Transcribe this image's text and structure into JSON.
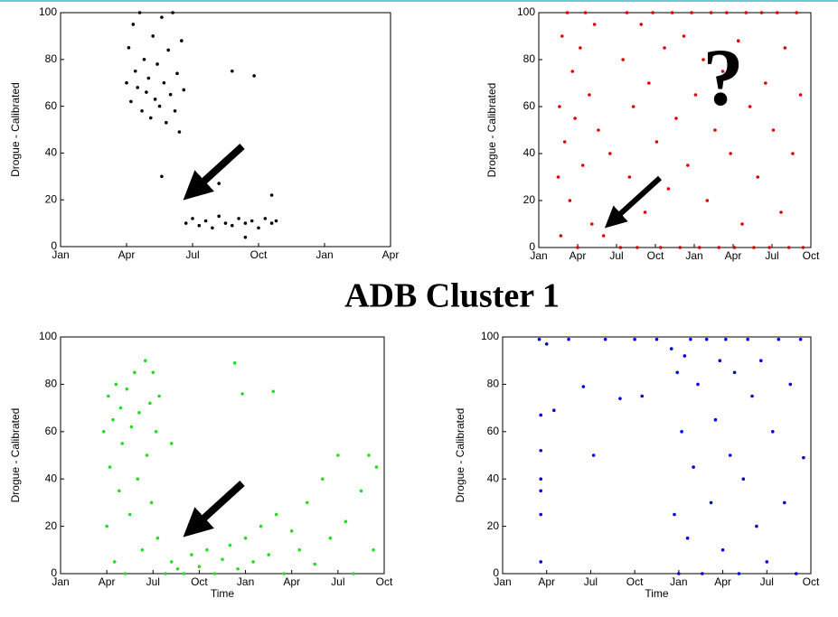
{
  "slide": {
    "title": "ADB Cluster 1"
  },
  "chart_data": [
    {
      "type": "scatter",
      "ylabel": "Drogue - Calibrated",
      "color": "#000000",
      "xlim": [
        0,
        15
      ],
      "ylim": [
        0,
        100
      ],
      "xticks": [
        {
          "value": 0,
          "label": "Jan"
        },
        {
          "value": 3,
          "label": "Apr"
        },
        {
          "value": 6,
          "label": "Jul"
        },
        {
          "value": 9,
          "label": "Oct"
        },
        {
          "value": 12,
          "label": "Jan"
        },
        {
          "value": 15,
          "label": "Apr"
        }
      ],
      "yticks": [
        0,
        20,
        40,
        60,
        80,
        100
      ],
      "x": [
        3.0,
        3.1,
        3.2,
        3.3,
        3.4,
        3.5,
        3.6,
        3.7,
        3.8,
        3.9,
        4.0,
        4.1,
        4.2,
        4.3,
        4.4,
        4.5,
        4.6,
        4.7,
        4.8,
        4.9,
        5.0,
        5.1,
        5.2,
        5.3,
        5.4,
        5.5,
        5.6,
        5.7,
        6.0,
        6.3,
        6.6,
        6.9,
        7.2,
        7.5,
        7.8,
        8.1,
        8.4,
        8.7,
        9.0,
        9.3,
        9.6,
        9.8,
        4.6,
        7.2,
        7.8,
        8.8,
        9.6,
        8.4
      ],
      "values": [
        70,
        85,
        62,
        95,
        75,
        68,
        100,
        58,
        80,
        66,
        72,
        55,
        90,
        63,
        78,
        60,
        98,
        70,
        53,
        84,
        65,
        100,
        58,
        74,
        49,
        88,
        67,
        10,
        12,
        9,
        11,
        8,
        13,
        10,
        9,
        12,
        10,
        11,
        8,
        12,
        10,
        11,
        30,
        27,
        75,
        73,
        22,
        4
      ]
    },
    {
      "type": "scatter",
      "ylabel": "Drogue - Calibrated",
      "color": "#e00000",
      "annotation": "?",
      "xlim": [
        0,
        21
      ],
      "ylim": [
        0,
        100
      ],
      "xticks": [
        {
          "value": 0,
          "label": "Jan"
        },
        {
          "value": 3,
          "label": "Apr"
        },
        {
          "value": 6,
          "label": "Jul"
        },
        {
          "value": 9,
          "label": "Oct"
        },
        {
          "value": 12,
          "label": "Jan"
        },
        {
          "value": 15,
          "label": "Apr"
        },
        {
          "value": 18,
          "label": "Jul"
        },
        {
          "value": 21,
          "label": "Oct"
        }
      ],
      "yticks": [
        0,
        20,
        40,
        60,
        80,
        100
      ],
      "x": [
        1.5,
        1.6,
        1.7,
        1.8,
        2.0,
        2.2,
        2.4,
        2.6,
        2.8,
        3.0,
        3.2,
        3.4,
        3.6,
        3.9,
        4.1,
        4.3,
        4.6,
        5.0,
        5.5,
        6.3,
        6.5,
        6.8,
        7.0,
        7.3,
        7.6,
        7.9,
        8.2,
        8.5,
        8.8,
        9.1,
        9.4,
        9.7,
        10.0,
        10.3,
        10.6,
        10.9,
        11.2,
        11.5,
        11.8,
        12.1,
        12.4,
        12.7,
        13.0,
        13.3,
        13.6,
        13.9,
        14.2,
        14.5,
        14.8,
        15.1,
        15.4,
        15.7,
        16.0,
        16.3,
        16.6,
        16.9,
        17.2,
        17.5,
        17.8,
        18.1,
        18.4,
        18.7,
        19.0,
        19.3,
        19.6,
        19.9,
        20.2,
        20.4
      ],
      "values": [
        30,
        60,
        5,
        90,
        45,
        100,
        20,
        75,
        55,
        0,
        85,
        35,
        100,
        65,
        10,
        95,
        50,
        5,
        40,
        0,
        80,
        100,
        30,
        60,
        0,
        95,
        15,
        70,
        100,
        45,
        0,
        85,
        25,
        100,
        55,
        0,
        90,
        35,
        100,
        65,
        0,
        80,
        20,
        100,
        50,
        0,
        75,
        100,
        40,
        0,
        88,
        10,
        100,
        60,
        0,
        30,
        100,
        70,
        0,
        50,
        100,
        15,
        85,
        0,
        40,
        100,
        65,
        0
      ]
    },
    {
      "type": "scatter",
      "ylabel": "Drogue - Calibrated",
      "xlabel": "Time",
      "color": "#22dd22",
      "xlim": [
        0,
        21
      ],
      "ylim": [
        0,
        100
      ],
      "xticks": [
        {
          "value": 0,
          "label": "Jan"
        },
        {
          "value": 3,
          "label": "Apr"
        },
        {
          "value": 6,
          "label": "Jul"
        },
        {
          "value": 9,
          "label": "Oct"
        },
        {
          "value": 12,
          "label": "Jan"
        },
        {
          "value": 15,
          "label": "Apr"
        },
        {
          "value": 18,
          "label": "Jul"
        },
        {
          "value": 21,
          "label": "Oct"
        }
      ],
      "yticks": [
        0,
        20,
        40,
        60,
        80,
        100
      ],
      "x": [
        2.8,
        3.0,
        3.1,
        3.2,
        3.4,
        3.5,
        3.6,
        3.8,
        3.9,
        4.0,
        4.2,
        4.3,
        4.5,
        4.6,
        4.8,
        5.0,
        5.1,
        5.3,
        5.5,
        5.6,
        5.8,
        5.9,
        6.0,
        6.2,
        6.3,
        6.4,
        6.8,
        7.2,
        7.6,
        8.0,
        8.5,
        9.0,
        9.5,
        10.0,
        10.5,
        11.0,
        11.5,
        12.0,
        12.5,
        13.0,
        13.5,
        14.0,
        14.5,
        15.0,
        15.5,
        16.0,
        16.5,
        17.0,
        17.5,
        18.0,
        18.5,
        19.0,
        19.5,
        20.0,
        20.3,
        20.5,
        11.3,
        11.8,
        13.8,
        7.2
      ],
      "values": [
        60,
        20,
        75,
        45,
        65,
        5,
        80,
        35,
        70,
        55,
        0,
        78,
        25,
        62,
        85,
        40,
        68,
        10,
        90,
        50,
        72,
        30,
        85,
        60,
        15,
        75,
        0,
        5,
        2,
        0,
        8,
        3,
        10,
        0,
        6,
        12,
        2,
        15,
        5,
        20,
        8,
        25,
        0,
        18,
        10,
        30,
        4,
        40,
        15,
        50,
        22,
        0,
        35,
        50,
        10,
        45,
        89,
        76,
        77,
        55
      ]
    },
    {
      "type": "scatter",
      "ylabel": "Drogue - Calibrated",
      "xlabel": "Time",
      "color": "#0000dd",
      "xlim": [
        0,
        21
      ],
      "ylim": [
        0,
        100
      ],
      "xticks": [
        {
          "value": 0,
          "label": "Jan"
        },
        {
          "value": 3,
          "label": "Apr"
        },
        {
          "value": 6,
          "label": "Jul"
        },
        {
          "value": 9,
          "label": "Oct"
        },
        {
          "value": 12,
          "label": "Jan"
        },
        {
          "value": 15,
          "label": "Apr"
        },
        {
          "value": 18,
          "label": "Jul"
        },
        {
          "value": 21,
          "label": "Oct"
        }
      ],
      "yticks": [
        0,
        20,
        40,
        60,
        80,
        100
      ],
      "x": [
        2.5,
        2.6,
        2.6,
        2.6,
        2.6,
        2.6,
        2.6,
        3.0,
        3.5,
        4.5,
        5.5,
        6.2,
        7.0,
        8.0,
        9.0,
        9.5,
        10.5,
        11.5,
        11.7,
        11.9,
        12.0,
        12.2,
        12.4,
        12.6,
        12.8,
        13.0,
        13.3,
        13.6,
        13.9,
        14.2,
        14.5,
        14.8,
        15.0,
        15.2,
        15.5,
        15.8,
        16.1,
        16.4,
        16.7,
        17.0,
        17.3,
        17.6,
        18.0,
        18.4,
        18.8,
        19.2,
        19.6,
        20.0,
        20.3,
        20.5
      ],
      "values": [
        99,
        25,
        35,
        40,
        52,
        67,
        5,
        97,
        69,
        99,
        79,
        50,
        99,
        74,
        99,
        75,
        99,
        95,
        25,
        85,
        0,
        60,
        92,
        15,
        99,
        45,
        80,
        0,
        99,
        30,
        65,
        90,
        10,
        99,
        50,
        85,
        0,
        40,
        99,
        75,
        20,
        90,
        5,
        60,
        99,
        30,
        80,
        0,
        99,
        49
      ]
    }
  ]
}
